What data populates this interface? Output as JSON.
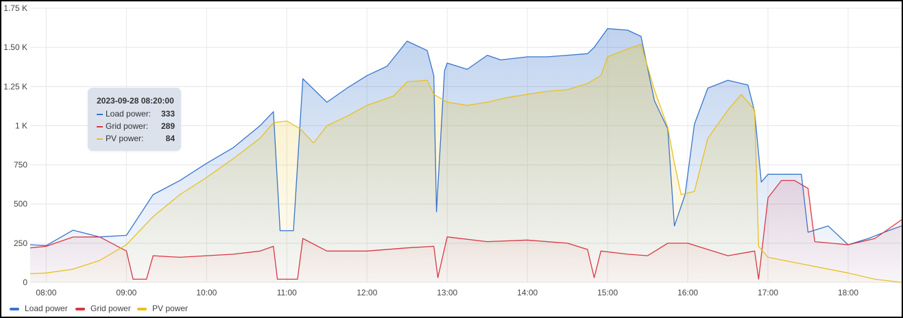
{
  "chart_data": {
    "type": "area",
    "x_start": "07:48",
    "x_end": "18:40",
    "x_ticks": [
      "08:00",
      "09:00",
      "10:00",
      "11:00",
      "12:00",
      "13:00",
      "14:00",
      "15:00",
      "16:00",
      "17:00",
      "18:00"
    ],
    "y_ticks": [
      "0",
      "250",
      "500",
      "750",
      "1 K",
      "1.25 K",
      "1.50 K",
      "1.75 K"
    ],
    "ylim": [
      0,
      1750
    ],
    "grid": true,
    "legend_position": "bottom-left",
    "series": [
      {
        "name": "Load power",
        "color": "#3874cb",
        "points": [
          [
            "07:48",
            240
          ],
          [
            "08:00",
            235
          ],
          [
            "08:20",
            333
          ],
          [
            "08:40",
            290
          ],
          [
            "09:00",
            300
          ],
          [
            "09:20",
            560
          ],
          [
            "09:40",
            650
          ],
          [
            "10:00",
            760
          ],
          [
            "10:20",
            860
          ],
          [
            "10:40",
            1000
          ],
          [
            "10:50",
            1090
          ],
          [
            "10:55",
            330
          ],
          [
            "11:05",
            330
          ],
          [
            "11:12",
            1300
          ],
          [
            "11:30",
            1150
          ],
          [
            "11:45",
            1240
          ],
          [
            "12:00",
            1320
          ],
          [
            "12:15",
            1380
          ],
          [
            "12:30",
            1540
          ],
          [
            "12:45",
            1480
          ],
          [
            "12:50",
            1320
          ],
          [
            "12:52",
            450
          ],
          [
            "12:58",
            1350
          ],
          [
            "13:00",
            1400
          ],
          [
            "13:15",
            1360
          ],
          [
            "13:30",
            1450
          ],
          [
            "13:40",
            1420
          ],
          [
            "14:00",
            1440
          ],
          [
            "14:15",
            1440
          ],
          [
            "14:30",
            1450
          ],
          [
            "14:45",
            1460
          ],
          [
            "14:50",
            1500
          ],
          [
            "15:00",
            1620
          ],
          [
            "15:15",
            1610
          ],
          [
            "15:25",
            1570
          ],
          [
            "15:35",
            1160
          ],
          [
            "15:45",
            980
          ],
          [
            "15:50",
            360
          ],
          [
            "15:58",
            560
          ],
          [
            "16:05",
            1010
          ],
          [
            "16:15",
            1240
          ],
          [
            "16:30",
            1290
          ],
          [
            "16:45",
            1260
          ],
          [
            "16:50",
            1090
          ],
          [
            "16:55",
            640
          ],
          [
            "17:00",
            690
          ],
          [
            "17:15",
            690
          ],
          [
            "17:25",
            690
          ],
          [
            "17:30",
            320
          ],
          [
            "17:45",
            360
          ],
          [
            "18:00",
            240
          ],
          [
            "18:15",
            280
          ],
          [
            "18:30",
            330
          ],
          [
            "18:40",
            360
          ]
        ]
      },
      {
        "name": "Grid power",
        "color": "#d83744",
        "points": [
          [
            "07:48",
            220
          ],
          [
            "08:00",
            230
          ],
          [
            "08:20",
            289
          ],
          [
            "08:40",
            290
          ],
          [
            "09:00",
            200
          ],
          [
            "09:05",
            20
          ],
          [
            "09:15",
            20
          ],
          [
            "09:20",
            170
          ],
          [
            "09:40",
            160
          ],
          [
            "10:00",
            170
          ],
          [
            "10:20",
            180
          ],
          [
            "10:40",
            200
          ],
          [
            "10:50",
            230
          ],
          [
            "10:53",
            20
          ],
          [
            "11:08",
            20
          ],
          [
            "11:12",
            280
          ],
          [
            "11:30",
            200
          ],
          [
            "12:00",
            200
          ],
          [
            "12:30",
            220
          ],
          [
            "12:50",
            230
          ],
          [
            "12:53",
            30
          ],
          [
            "13:00",
            290
          ],
          [
            "13:30",
            260
          ],
          [
            "14:00",
            270
          ],
          [
            "14:30",
            250
          ],
          [
            "14:45",
            210
          ],
          [
            "14:50",
            30
          ],
          [
            "14:55",
            200
          ],
          [
            "15:15",
            180
          ],
          [
            "15:30",
            170
          ],
          [
            "15:45",
            250
          ],
          [
            "16:00",
            250
          ],
          [
            "16:30",
            170
          ],
          [
            "16:50",
            200
          ],
          [
            "16:53",
            20
          ],
          [
            "17:00",
            540
          ],
          [
            "17:10",
            650
          ],
          [
            "17:20",
            650
          ],
          [
            "17:30",
            600
          ],
          [
            "17:35",
            260
          ],
          [
            "18:00",
            240
          ],
          [
            "18:20",
            280
          ],
          [
            "18:40",
            400
          ]
        ]
      },
      {
        "name": "PV power",
        "color": "#e8c01f",
        "points": [
          [
            "07:48",
            55
          ],
          [
            "08:00",
            60
          ],
          [
            "08:20",
            84
          ],
          [
            "08:40",
            140
          ],
          [
            "09:00",
            240
          ],
          [
            "09:20",
            420
          ],
          [
            "09:40",
            560
          ],
          [
            "10:00",
            670
          ],
          [
            "10:20",
            790
          ],
          [
            "10:40",
            920
          ],
          [
            "10:50",
            1020
          ],
          [
            "11:00",
            1030
          ],
          [
            "11:10",
            980
          ],
          [
            "11:20",
            890
          ],
          [
            "11:30",
            1000
          ],
          [
            "11:45",
            1060
          ],
          [
            "12:00",
            1130
          ],
          [
            "12:20",
            1190
          ],
          [
            "12:30",
            1280
          ],
          [
            "12:45",
            1290
          ],
          [
            "12:50",
            1200
          ],
          [
            "13:00",
            1150
          ],
          [
            "13:15",
            1130
          ],
          [
            "13:30",
            1150
          ],
          [
            "13:45",
            1180
          ],
          [
            "14:00",
            1200
          ],
          [
            "14:15",
            1220
          ],
          [
            "14:30",
            1230
          ],
          [
            "14:45",
            1270
          ],
          [
            "14:55",
            1320
          ],
          [
            "15:00",
            1440
          ],
          [
            "15:15",
            1490
          ],
          [
            "15:25",
            1520
          ],
          [
            "15:35",
            1230
          ],
          [
            "15:45",
            990
          ],
          [
            "15:50",
            760
          ],
          [
            "15:55",
            560
          ],
          [
            "16:05",
            580
          ],
          [
            "16:15",
            920
          ],
          [
            "16:30",
            1100
          ],
          [
            "16:40",
            1200
          ],
          [
            "16:50",
            1100
          ],
          [
            "16:53",
            230
          ],
          [
            "17:00",
            160
          ],
          [
            "17:30",
            110
          ],
          [
            "18:00",
            60
          ],
          [
            "18:20",
            20
          ],
          [
            "18:40",
            0
          ]
        ]
      }
    ],
    "tooltip": {
      "title": "2023-09-28 08:20:00",
      "rows": [
        {
          "label": "Load power:",
          "value": "333",
          "color": "#3874cb"
        },
        {
          "label": "Grid power:",
          "value": "289",
          "color": "#d83744"
        },
        {
          "label": "PV power:",
          "value": "84",
          "color": "#e8c01f"
        }
      ]
    }
  }
}
